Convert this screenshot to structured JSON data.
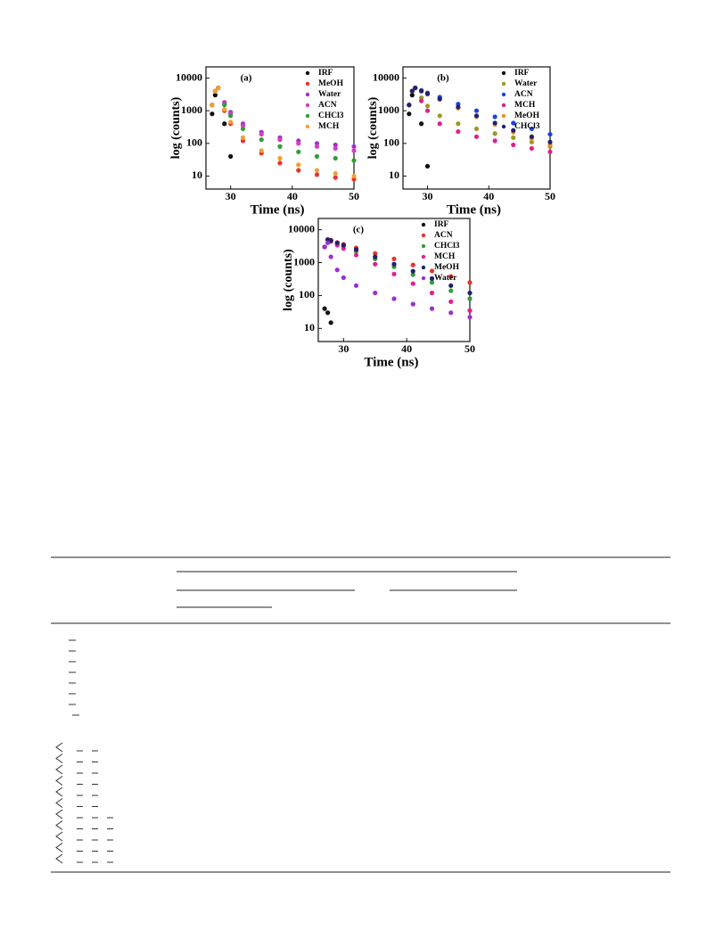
{
  "chart_data": [
    {
      "type": "scatter",
      "title": "(a)",
      "xlabel": "Time (ns)",
      "ylabel": "log (counts)",
      "log_y": true,
      "xlim": [
        26,
        50
      ],
      "ylim": [
        4,
        22000
      ],
      "xticks": [
        30,
        40,
        50
      ],
      "yticks": [
        10,
        100,
        1000,
        10000
      ],
      "legend": "upper right",
      "x": [
        27,
        27.5,
        28,
        29,
        30,
        32,
        35,
        38,
        41,
        44,
        47,
        50
      ],
      "series": [
        {
          "name": "IRF",
          "color": "#111111",
          "values": [
            800,
            3000,
            5000,
            400,
            40,
            null,
            null,
            null,
            null,
            null,
            null,
            null
          ]
        },
        {
          "name": "MeOH",
          "color": "#e8342c",
          "values": [
            1500,
            4000,
            5000,
            1000,
            400,
            120,
            50,
            25,
            15,
            11,
            9,
            8
          ]
        },
        {
          "name": "Water",
          "color": "#a030d0",
          "values": [
            1500,
            4000,
            5000,
            1800,
            900,
            400,
            220,
            150,
            120,
            100,
            90,
            80
          ]
        },
        {
          "name": "ACN",
          "color": "#d63cc0",
          "values": [
            1500,
            4000,
            5000,
            1600,
            800,
            350,
            190,
            130,
            100,
            80,
            70,
            60
          ]
        },
        {
          "name": "CHCl3",
          "color": "#2f9e3a",
          "values": [
            1500,
            4000,
            5000,
            1500,
            700,
            280,
            130,
            80,
            55,
            40,
            35,
            30
          ]
        },
        {
          "name": "MCH",
          "color": "#f0a030",
          "values": [
            1500,
            4000,
            5000,
            1100,
            450,
            150,
            60,
            35,
            22,
            15,
            12,
            10
          ]
        }
      ]
    },
    {
      "type": "scatter",
      "title": "(b)",
      "xlabel": "Time (ns)",
      "ylabel": "log (counts)",
      "log_y": true,
      "xlim": [
        26,
        50
      ],
      "ylim": [
        4,
        22000
      ],
      "xticks": [
        30,
        40,
        50
      ],
      "yticks": [
        10,
        100,
        1000,
        10000
      ],
      "legend": "upper right",
      "x": [
        27,
        27.5,
        28,
        29,
        30,
        32,
        35,
        38,
        41,
        44,
        47,
        50
      ],
      "series": [
        {
          "name": "IRF",
          "color": "#111111",
          "values": [
            800,
            3000,
            5000,
            400,
            20,
            null,
            null,
            null,
            null,
            null,
            null,
            null
          ]
        },
        {
          "name": "Water",
          "color": "#9a9a20",
          "values": [
            1500,
            4000,
            5000,
            2500,
            1400,
            700,
            400,
            280,
            200,
            150,
            110,
            80
          ]
        },
        {
          "name": "ACN",
          "color": "#2040e0",
          "values": [
            1500,
            4000,
            5000,
            4200,
            3500,
            2600,
            1600,
            1000,
            650,
            420,
            280,
            190
          ]
        },
        {
          "name": "MCH",
          "color": "#e0208a",
          "values": [
            1500,
            4000,
            5000,
            2000,
            1000,
            400,
            230,
            160,
            120,
            90,
            70,
            55
          ]
        },
        {
          "name": "MeOH",
          "color": "#e89020",
          "values": [
            1500,
            4000,
            5000,
            4000,
            3200,
            2200,
            1200,
            650,
            380,
            220,
            140,
            90
          ]
        },
        {
          "name": "CHCl3",
          "color": "#202070",
          "values": [
            1500,
            4000,
            5000,
            4000,
            3300,
            2300,
            1300,
            700,
            420,
            250,
            160,
            110
          ]
        }
      ]
    },
    {
      "type": "scatter",
      "title": "(c)",
      "xlabel": "Time (ns)",
      "ylabel": "log (counts)",
      "log_y": true,
      "xlim": [
        26,
        50
      ],
      "ylim": [
        4,
        22000
      ],
      "xticks": [
        30,
        40,
        50
      ],
      "yticks": [
        10,
        100,
        1000,
        10000
      ],
      "legend": "upper right",
      "x": [
        27,
        27.5,
        28,
        29,
        30,
        32,
        35,
        38,
        41,
        44,
        47,
        50
      ],
      "series": [
        {
          "name": "IRF",
          "color": "#111111",
          "values": [
            40,
            30,
            15,
            null,
            null,
            null,
            null,
            null,
            null,
            null,
            null,
            null
          ]
        },
        {
          "name": "ACN",
          "color": "#e8342c",
          "values": [
            3000,
            5000,
            4800,
            4100,
            3600,
            2800,
            1900,
            1300,
            850,
            560,
            380,
            250
          ]
        },
        {
          "name": "CHCl3",
          "color": "#2f9e3a",
          "values": [
            3000,
            5000,
            4600,
            3800,
            3200,
            2200,
            1300,
            750,
            430,
            250,
            140,
            80
          ]
        },
        {
          "name": "MCH",
          "color": "#e0208a",
          "values": [
            3000,
            5000,
            4400,
            3400,
            2700,
            1700,
            900,
            450,
            230,
            120,
            65,
            35
          ]
        },
        {
          "name": "MeOH",
          "color": "#202070",
          "values": [
            3000,
            5000,
            4700,
            4000,
            3400,
            2500,
            1500,
            900,
            550,
            330,
            200,
            120
          ]
        },
        {
          "name": "Water",
          "color": "#9a30d0",
          "values": [
            3000,
            4000,
            1500,
            600,
            350,
            200,
            120,
            80,
            55,
            40,
            30,
            22
          ]
        }
      ]
    }
  ]
}
